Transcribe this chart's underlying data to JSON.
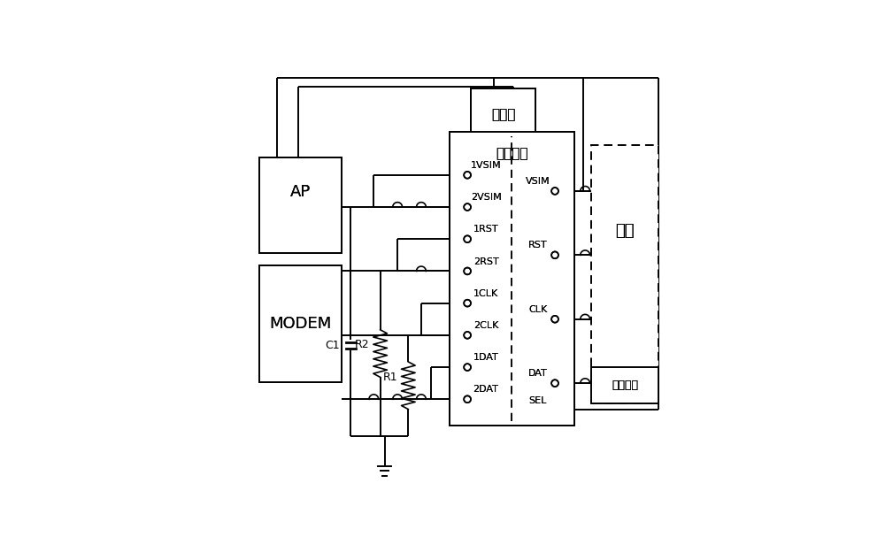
{
  "bg_color": "#ffffff",
  "lw": 1.4,
  "boxes": {
    "AP": [
      0.05,
      0.56,
      0.19,
      0.23
    ],
    "MODEM": [
      0.05,
      0.26,
      0.19,
      0.28
    ],
    "INV": [
      0.54,
      0.82,
      0.15,
      0.13
    ],
    "SW": [
      0.5,
      0.18,
      0.28,
      0.67
    ],
    "CS": [
      0.82,
      0.22,
      0.15,
      0.6
    ],
    "TS": [
      0.82,
      0.22,
      0.15,
      0.09
    ]
  },
  "labels": {
    "AP": "AP",
    "MODEM": "MODEM",
    "INV": "反相器",
    "SW": "切换单元",
    "CS": "卡座",
    "TS": "行程开关"
  },
  "left_pins": [
    "1VSIM",
    "2VSIM",
    "1RST",
    "2RST",
    "1CLK",
    "2CLK",
    "1DAT",
    "2DAT"
  ],
  "right_pins": [
    "VSIM",
    "RST",
    "CLK",
    "DAT",
    "SEL"
  ],
  "font_sizes": {
    "large": 13,
    "medium": 11,
    "small": 8,
    "tiny": 9
  }
}
